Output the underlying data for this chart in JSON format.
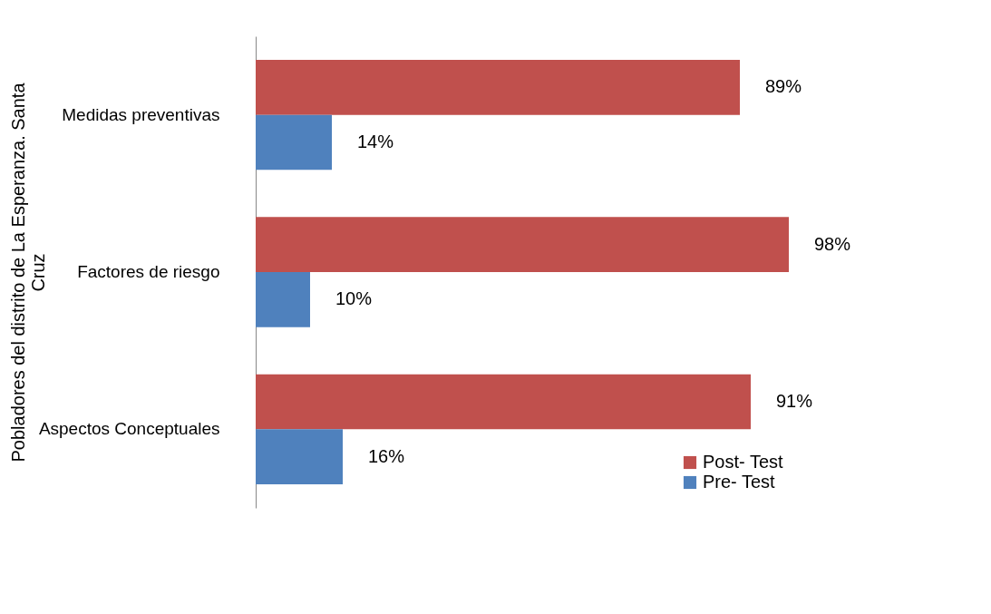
{
  "chart_data": {
    "type": "bar",
    "orientation": "horizontal",
    "ylabel": "Pobladores del distrito de La Esperanza. Santa Cruz",
    "categories": [
      "Medidas preventivas",
      "Factores de riesgo",
      "Aspectos Conceptuales"
    ],
    "series": [
      {
        "name": "Post- Test",
        "color": "#c0504d",
        "values": [
          89,
          98,
          91
        ],
        "value_labels": [
          "89%",
          "98%",
          "91%"
        ]
      },
      {
        "name": "Pre- Test",
        "color": "#4f81bd",
        "values": [
          14,
          10,
          16
        ],
        "value_labels": [
          "14%",
          "10%",
          "16%"
        ]
      }
    ],
    "legend": "bottom right",
    "grid": false
  }
}
